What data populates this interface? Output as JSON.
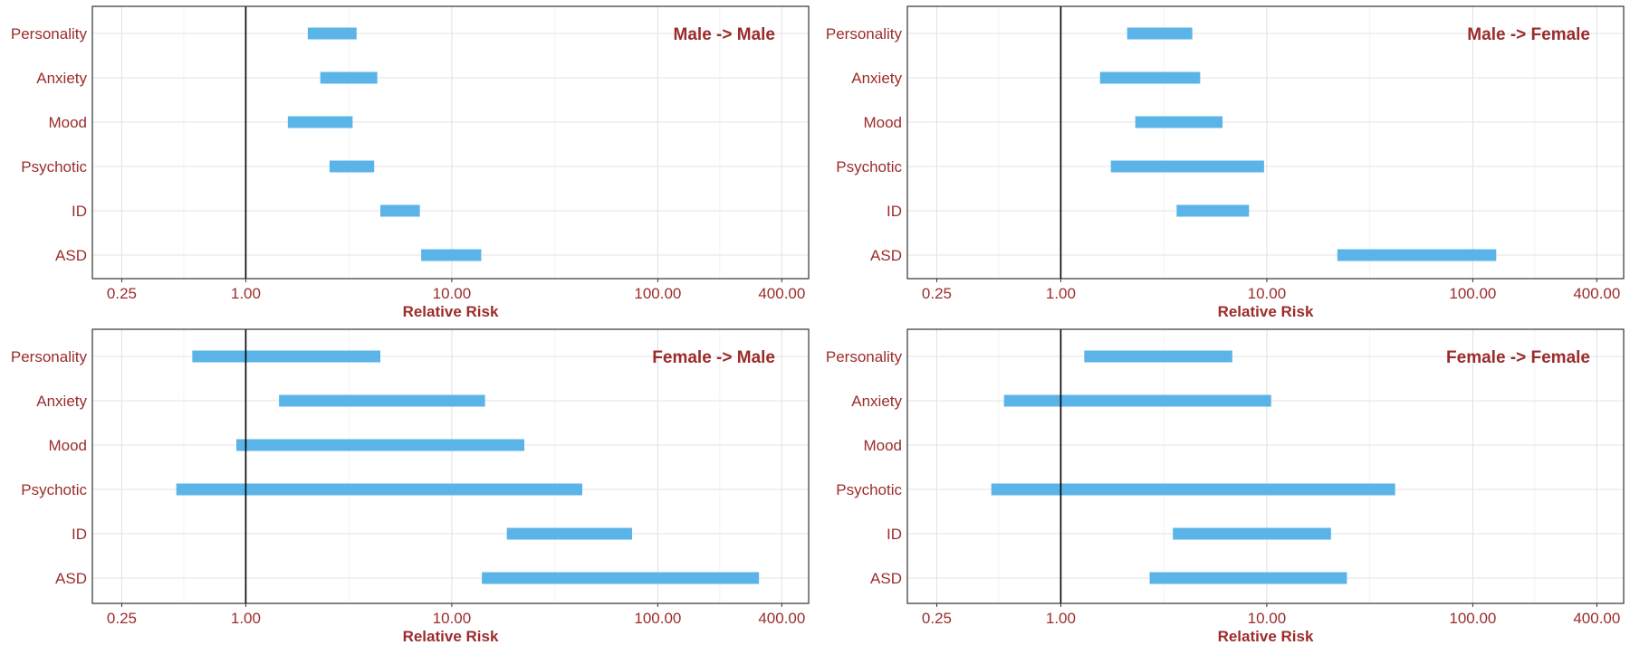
{
  "colors": {
    "bar": "#5bb4e8",
    "text": "#9b2c2c",
    "reference_line": "#000000",
    "frame": "#333333"
  },
  "chart_data": [
    {
      "type": "bar",
      "title": "Male -> Male",
      "xlabel": "Relative Risk",
      "x_scale": "log",
      "xlim": [
        0.18,
        540
      ],
      "x_ticks": [
        0.25,
        1,
        10,
        100,
        400
      ],
      "x_tick_labels": [
        "0.25",
        "1.00",
        "10.00",
        "100.00",
        "400.00"
      ],
      "reference_line": 1,
      "grid": true,
      "categories": [
        "Personality",
        "Anxiety",
        "Mood",
        "Psychotic",
        "ID",
        "ASD"
      ],
      "ci_low": [
        2.0,
        2.3,
        1.6,
        2.55,
        4.5,
        7.1
      ],
      "ci_high": [
        3.45,
        4.35,
        3.3,
        4.2,
        7.0,
        13.9
      ]
    },
    {
      "type": "bar",
      "title": "Male -> Female",
      "xlabel": "Relative Risk",
      "x_scale": "log",
      "xlim": [
        0.18,
        540
      ],
      "x_ticks": [
        0.25,
        1,
        10,
        100,
        400
      ],
      "x_tick_labels": [
        "0.25",
        "1.00",
        "10.00",
        "100.00",
        "400.00"
      ],
      "reference_line": 1,
      "grid": true,
      "categories": [
        "Personality",
        "Anxiety",
        "Mood",
        "Psychotic",
        "ID",
        "ASD"
      ],
      "ci_low": [
        2.1,
        1.55,
        2.3,
        1.75,
        3.65,
        22.0
      ],
      "ci_high": [
        4.35,
        4.75,
        6.1,
        9.7,
        8.2,
        130.0
      ]
    },
    {
      "type": "bar",
      "title": "Female -> Male",
      "xlabel": "Relative Risk",
      "x_scale": "log",
      "xlim": [
        0.18,
        540
      ],
      "x_ticks": [
        0.25,
        1,
        10,
        100,
        400
      ],
      "x_tick_labels": [
        "0.25",
        "1.00",
        "10.00",
        "100.00",
        "400.00"
      ],
      "reference_line": 1,
      "grid": true,
      "categories": [
        "Personality",
        "Anxiety",
        "Mood",
        "Psychotic",
        "ID",
        "ASD"
      ],
      "ci_low": [
        0.55,
        1.45,
        0.9,
        0.46,
        18.5,
        14.0
      ],
      "ci_high": [
        4.5,
        14.5,
        22.5,
        43.0,
        75.0,
        310.0
      ]
    },
    {
      "type": "bar",
      "title": "Female -> Female",
      "xlabel": "Relative Risk",
      "x_scale": "log",
      "xlim": [
        0.18,
        540
      ],
      "x_ticks": [
        0.25,
        1,
        10,
        100,
        400
      ],
      "x_tick_labels": [
        "0.25",
        "1.00",
        "10.00",
        "100.00",
        "400.00"
      ],
      "reference_line": 1,
      "grid": true,
      "categories": [
        "Personality",
        "Anxiety",
        "Mood",
        "Psychotic",
        "ID",
        "ASD"
      ],
      "ci_low": [
        1.3,
        0.53,
        null,
        0.46,
        3.5,
        2.7
      ],
      "ci_high": [
        6.8,
        10.5,
        null,
        42.0,
        20.5,
        24.5
      ]
    }
  ]
}
